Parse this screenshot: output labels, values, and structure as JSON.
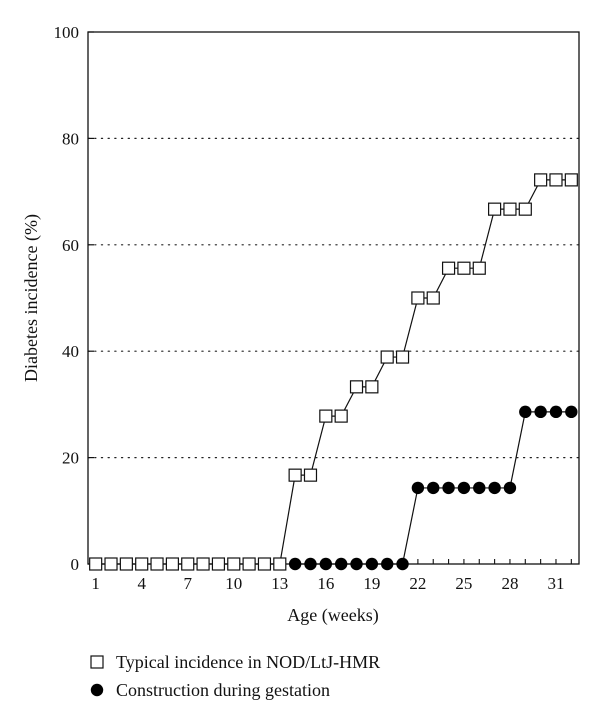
{
  "chart_data": {
    "type": "line",
    "xlabel": "Age (weeks)",
    "ylabel": "Diabetes incidence (%)",
    "xlim": [
      0.5,
      32.5
    ],
    "ylim": [
      0,
      100
    ],
    "x_ticks": [
      1,
      4,
      7,
      10,
      13,
      16,
      19,
      22,
      25,
      28,
      31
    ],
    "y_ticks": [
      0,
      20,
      40,
      60,
      80,
      100
    ],
    "grid": "horizontal-dotted",
    "legend_position": "bottom",
    "series": [
      {
        "name": "Typical incidence in NOD/LtJ-HMR",
        "marker": "open-square",
        "x": [
          1,
          2,
          3,
          4,
          5,
          6,
          7,
          8,
          9,
          10,
          11,
          12,
          13,
          14,
          15,
          16,
          17,
          18,
          19,
          20,
          21,
          22,
          23,
          24,
          25,
          26,
          27,
          28,
          29,
          30,
          31,
          32
        ],
        "values": [
          0,
          0,
          0,
          0,
          0,
          0,
          0,
          0,
          0,
          0,
          0,
          0,
          0,
          16.7,
          16.7,
          27.8,
          27.8,
          33.3,
          33.3,
          38.9,
          38.9,
          50,
          50,
          55.6,
          55.6,
          55.6,
          66.7,
          66.7,
          66.7,
          72.2,
          72.2,
          72.2
        ]
      },
      {
        "name": "Construction during gestation",
        "marker": "filled-circle",
        "x": [
          14,
          15,
          16,
          17,
          18,
          19,
          20,
          21,
          22,
          23,
          24,
          25,
          26,
          27,
          28,
          29,
          30,
          31,
          32
        ],
        "values": [
          0,
          0,
          0,
          0,
          0,
          0,
          0,
          0,
          14.3,
          14.3,
          14.3,
          14.3,
          14.3,
          14.3,
          14.3,
          28.6,
          28.6,
          28.6,
          28.6
        ]
      }
    ]
  }
}
